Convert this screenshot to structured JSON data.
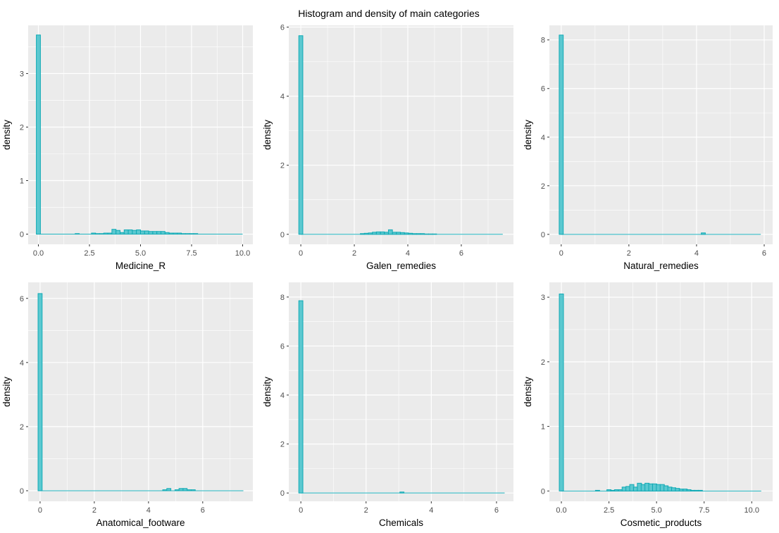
{
  "chart_data": [
    {
      "type": "bar",
      "title": "Histogram and density of main categories",
      "xlabel": "Medicine_R",
      "ylabel": "density",
      "xlim": [
        -0.5,
        10.5
      ],
      "ylim": [
        -0.19,
        3.9
      ],
      "xticks": [
        0,
        2.5,
        5,
        7.5,
        10
      ],
      "xtick_labels": [
        "0.0",
        "2.5",
        "5.0",
        "7.5",
        "10.0"
      ],
      "yticks": [
        0,
        1,
        2,
        3
      ],
      "binwidth": 0.2,
      "bars": [
        [
          0,
          3.72
        ],
        [
          1.9,
          0.01
        ],
        [
          2.7,
          0.02
        ],
        [
          2.9,
          0.01
        ],
        [
          3.1,
          0.01
        ],
        [
          3.3,
          0.02
        ],
        [
          3.5,
          0.02
        ],
        [
          3.7,
          0.09
        ],
        [
          3.9,
          0.07
        ],
        [
          4.1,
          0.03
        ],
        [
          4.3,
          0.08
        ],
        [
          4.5,
          0.08
        ],
        [
          4.7,
          0.07
        ],
        [
          4.9,
          0.08
        ],
        [
          5.1,
          0.06
        ],
        [
          5.3,
          0.06
        ],
        [
          5.5,
          0.05
        ],
        [
          5.7,
          0.05
        ],
        [
          5.9,
          0.05
        ],
        [
          6.1,
          0.05
        ],
        [
          6.3,
          0.03
        ],
        [
          6.5,
          0.02
        ],
        [
          6.7,
          0.02
        ],
        [
          6.9,
          0.02
        ],
        [
          7.1,
          0.01
        ],
        [
          7.3,
          0.01
        ],
        [
          7.5,
          0.01
        ],
        [
          7.7,
          0.01
        ]
      ],
      "xmax": 10
    },
    {
      "type": "bar",
      "xlabel": "Galen_remedies",
      "ylabel": "density",
      "xlim": [
        -0.45,
        7.95
      ],
      "ylim": [
        -0.29,
        6.05
      ],
      "xticks": [
        0,
        2,
        4,
        6
      ],
      "xtick_labels": [
        "0",
        "2",
        "4",
        "6"
      ],
      "yticks": [
        0,
        2,
        4,
        6
      ],
      "binwidth": 0.15,
      "bars": [
        [
          0,
          5.75
        ],
        [
          2.3,
          0.02
        ],
        [
          2.45,
          0.03
        ],
        [
          2.6,
          0.04
        ],
        [
          2.75,
          0.06
        ],
        [
          2.9,
          0.07
        ],
        [
          3.05,
          0.07
        ],
        [
          3.2,
          0.06
        ],
        [
          3.35,
          0.13
        ],
        [
          3.5,
          0.06
        ],
        [
          3.65,
          0.06
        ],
        [
          3.8,
          0.05
        ],
        [
          3.95,
          0.04
        ],
        [
          4.1,
          0.03
        ],
        [
          4.25,
          0.02
        ],
        [
          4.4,
          0.02
        ],
        [
          4.55,
          0.02
        ],
        [
          4.7,
          0.01
        ],
        [
          4.85,
          0.01
        ],
        [
          5.0,
          0.01
        ]
      ],
      "xmax": 7.55
    },
    {
      "type": "bar",
      "xlabel": "Natural_remedies",
      "ylabel": "density",
      "xlim": [
        -0.35,
        6.25
      ],
      "ylim": [
        -0.41,
        8.6
      ],
      "xticks": [
        0,
        2,
        4,
        6
      ],
      "xtick_labels": [
        "0",
        "2",
        "4",
        "6"
      ],
      "yticks": [
        0,
        2,
        4,
        6,
        8
      ],
      "binwidth": 0.12,
      "bars": [
        [
          0,
          8.2
        ],
        [
          4.2,
          0.06
        ]
      ],
      "xmax": 5.9
    },
    {
      "type": "bar",
      "xlabel": "Anatomical_footware",
      "ylabel": "density",
      "xlim": [
        -0.44,
        7.85
      ],
      "ylim": [
        -0.33,
        6.5
      ],
      "xticks": [
        0,
        2,
        4,
        6
      ],
      "xtick_labels": [
        "0",
        "2",
        "4",
        "6"
      ],
      "yticks": [
        0,
        2,
        4,
        6
      ],
      "binwidth": 0.15,
      "bars": [
        [
          0,
          6.15
        ],
        [
          4.6,
          0.03
        ],
        [
          4.75,
          0.07
        ],
        [
          5.05,
          0.03
        ],
        [
          5.2,
          0.07
        ],
        [
          5.35,
          0.07
        ],
        [
          5.5,
          0.03
        ],
        [
          5.65,
          0.03
        ]
      ],
      "xmax": 7.5
    },
    {
      "type": "bar",
      "xlabel": "Chemicals",
      "ylabel": "density",
      "xlim": [
        -0.37,
        6.52
      ],
      "ylim": [
        -0.34,
        8.6
      ],
      "xticks": [
        0,
        2,
        4,
        6
      ],
      "xtick_labels": [
        "0",
        "2",
        "4",
        "6"
      ],
      "yticks": [
        0,
        2,
        4,
        6,
        8
      ],
      "binwidth": 0.125,
      "bars": [
        [
          0,
          7.85
        ],
        [
          3.1,
          0.04
        ]
      ],
      "xmax": 6.25
    },
    {
      "type": "bar",
      "xlabel": "Cosmetic_products",
      "ylabel": "density",
      "xlim": [
        -0.63,
        11.1
      ],
      "ylim": [
        -0.16,
        3.23
      ],
      "xticks": [
        0,
        2.5,
        5,
        7.5,
        10
      ],
      "xtick_labels": [
        "0.0",
        "2.5",
        "5.0",
        "7.5",
        "10.0"
      ],
      "yticks": [
        0,
        1,
        2,
        3
      ],
      "binwidth": 0.22,
      "bars": [
        [
          0,
          3.05
        ],
        [
          1.9,
          0.01
        ],
        [
          2.5,
          0.02
        ],
        [
          2.7,
          0.01
        ],
        [
          2.9,
          0.02
        ],
        [
          3.1,
          0.02
        ],
        [
          3.3,
          0.06
        ],
        [
          3.5,
          0.07
        ],
        [
          3.7,
          0.1
        ],
        [
          3.9,
          0.06
        ],
        [
          4.1,
          0.12
        ],
        [
          4.3,
          0.1
        ],
        [
          4.5,
          0.12
        ],
        [
          4.7,
          0.11
        ],
        [
          4.9,
          0.11
        ],
        [
          5.1,
          0.1
        ],
        [
          5.3,
          0.1
        ],
        [
          5.5,
          0.08
        ],
        [
          5.7,
          0.06
        ],
        [
          5.9,
          0.05
        ],
        [
          6.1,
          0.04
        ],
        [
          6.3,
          0.03
        ],
        [
          6.5,
          0.03
        ],
        [
          6.7,
          0.02
        ],
        [
          6.9,
          0.01
        ],
        [
          7.1,
          0.01
        ],
        [
          7.3,
          0.01
        ]
      ],
      "xmax": 10.5
    }
  ]
}
